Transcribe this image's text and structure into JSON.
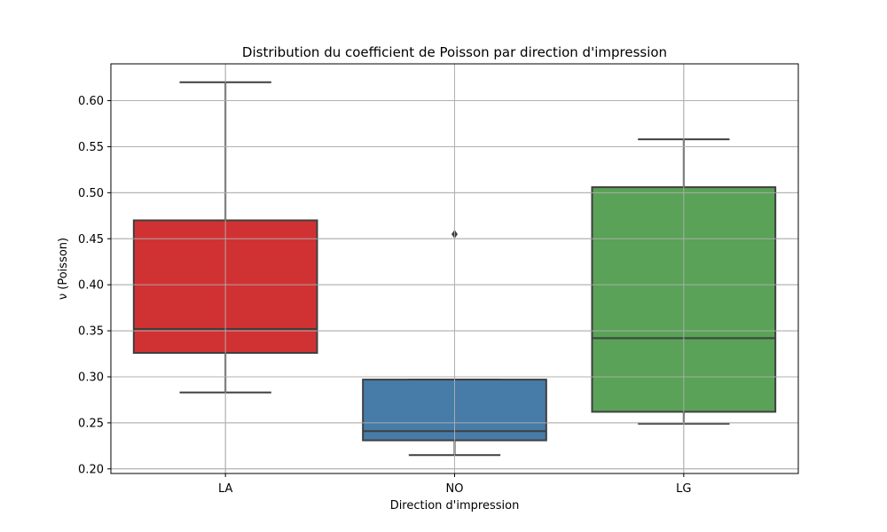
{
  "chart_data": {
    "type": "boxplot",
    "title": "Distribution du coefficient de Poisson par direction d'impression",
    "xlabel": "Direction d'impression",
    "ylabel": "ν (Poisson)",
    "categories": [
      "LA",
      "NO",
      "LG"
    ],
    "ylim": [
      0.195,
      0.64
    ],
    "yticks": [
      0.2,
      0.25,
      0.3,
      0.35,
      0.4,
      0.45,
      0.5,
      0.55,
      0.6
    ],
    "ytick_labels": [
      "0.20",
      "0.25",
      "0.30",
      "0.35",
      "0.40",
      "0.45",
      "0.50",
      "0.55",
      "0.60"
    ],
    "grid": true,
    "boxes": [
      {
        "category": "LA",
        "whisker_low": 0.283,
        "q1": 0.326,
        "median": 0.352,
        "q3": 0.47,
        "whisker_high": 0.62,
        "outliers": [],
        "color": "#d03234"
      },
      {
        "category": "NO",
        "whisker_low": 0.215,
        "q1": 0.231,
        "median": 0.241,
        "q3": 0.297,
        "whisker_high": 0.297,
        "outliers": [
          0.455
        ],
        "color": "#477ca8"
      },
      {
        "category": "LG",
        "whisker_low": 0.249,
        "q1": 0.262,
        "median": 0.342,
        "q3": 0.506,
        "whisker_high": 0.558,
        "outliers": [],
        "color": "#59a257"
      }
    ]
  },
  "colors": {
    "grid": "#b0b0b0",
    "box_edge": "#3f3f3f",
    "axes": "#000000"
  }
}
